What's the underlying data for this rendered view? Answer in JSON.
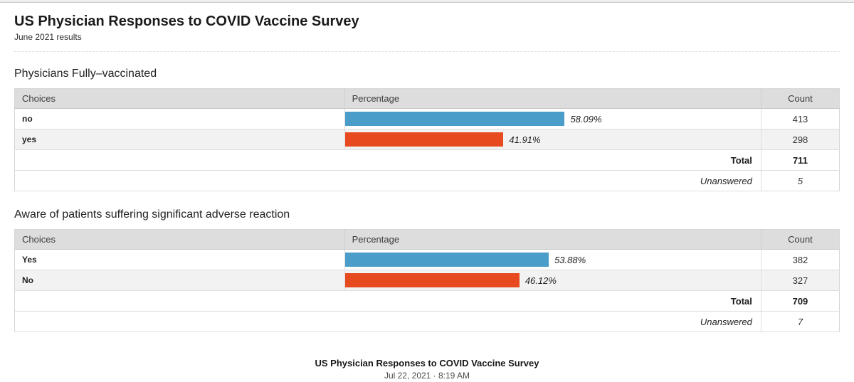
{
  "page": {
    "title": "US Physician Responses to COVID Vaccine Survey",
    "subtitle": "June 2021 results"
  },
  "sections": [
    {
      "title": "Physicians Fully–vaccinated",
      "columns": {
        "choices": "Choices",
        "percentage": "Percentage",
        "count": "Count"
      },
      "rows": [
        {
          "choice": "no",
          "pct": 58.09,
          "pct_label": "58.09%",
          "count": "413",
          "bar_color": "#4B9DC9"
        },
        {
          "choice": "yes",
          "pct": 41.91,
          "pct_label": "41.91%",
          "count": "298",
          "bar_color": "#E64A1E"
        }
      ],
      "total_label": "Total",
      "total_count": "711",
      "unanswered_label": "Unanswered",
      "unanswered_count": "5"
    },
    {
      "title": "Aware of patients suffering significant adverse reaction",
      "columns": {
        "choices": "Choices",
        "percentage": "Percentage",
        "count": "Count"
      },
      "rows": [
        {
          "choice": "Yes",
          "pct": 53.88,
          "pct_label": "53.88%",
          "count": "382",
          "bar_color": "#4B9DC9"
        },
        {
          "choice": "No",
          "pct": 46.12,
          "pct_label": "46.12%",
          "count": "327",
          "bar_color": "#E64A1E"
        }
      ],
      "total_label": "Total",
      "total_count": "709",
      "unanswered_label": "Unanswered",
      "unanswered_count": "7"
    }
  ],
  "footer": {
    "title": "US Physician Responses to COVID Vaccine Survey",
    "timestamp": "Jul 22, 2021 · 8:19 AM"
  },
  "colors": {
    "bar_blue": "#4B9DC9",
    "bar_red": "#E64A1E",
    "header_bg": "#DDDDDD",
    "alt_row_bg": "#F2F2F2"
  },
  "chart_data": [
    {
      "type": "bar",
      "orientation": "horizontal",
      "title": "Physicians Fully–vaccinated",
      "categories": [
        "no",
        "yes"
      ],
      "series": [
        {
          "name": "Percentage",
          "values": [
            58.09,
            41.91
          ]
        },
        {
          "name": "Count",
          "values": [
            413,
            298
          ]
        }
      ],
      "total": 711,
      "unanswered": 5,
      "xlim": [
        0,
        100
      ],
      "bar_colors": [
        "#4B9DC9",
        "#E64A1E"
      ],
      "value_labels": [
        "58.09%",
        "41.91%"
      ]
    },
    {
      "type": "bar",
      "orientation": "horizontal",
      "title": "Aware of patients suffering significant adverse reaction",
      "categories": [
        "Yes",
        "No"
      ],
      "series": [
        {
          "name": "Percentage",
          "values": [
            53.88,
            46.12
          ]
        },
        {
          "name": "Count",
          "values": [
            382,
            327
          ]
        }
      ],
      "total": 709,
      "unanswered": 7,
      "xlim": [
        0,
        100
      ],
      "bar_colors": [
        "#4B9DC9",
        "#E64A1E"
      ],
      "value_labels": [
        "53.88%",
        "46.12%"
      ]
    }
  ]
}
